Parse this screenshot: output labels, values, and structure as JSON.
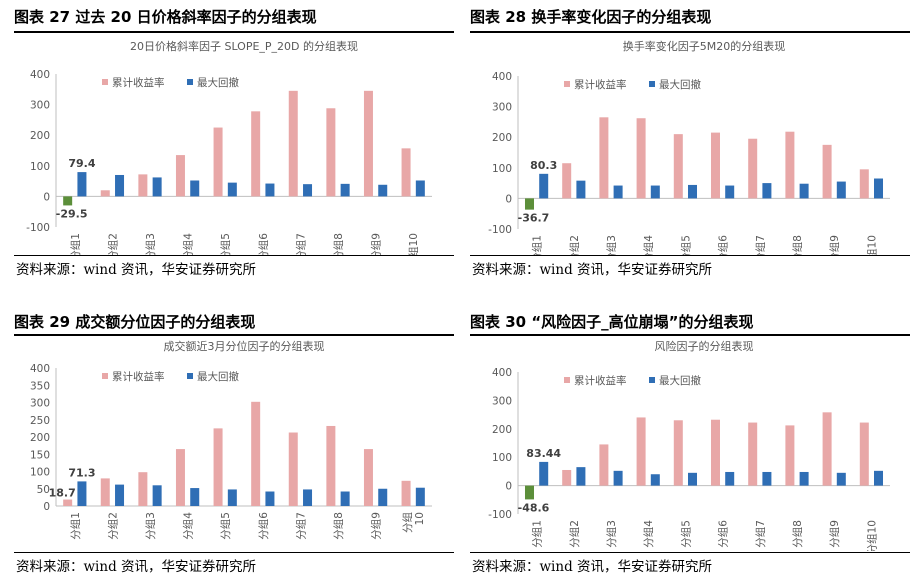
{
  "colors": {
    "series1": "#E8A7A7",
    "series2": "#2F6EB5",
    "negative": "#5C8F3A",
    "axis": "#BFBFBF",
    "text": "#595959"
  },
  "panels": [
    {
      "figure_title": "图表 27  过去 20 日价格斜率因子的分组表现",
      "source": "资料来源：wind 资讯，华安证券研究所",
      "chart_data": {
        "type": "bar",
        "title": "20日价格斜率因子 SLOPE_P_20D 的分组表现",
        "categories": [
          "分组1",
          "分组2",
          "分组3",
          "分组4",
          "分组5",
          "分组6",
          "分组7",
          "分组8",
          "分组9",
          "分组10"
        ],
        "series": [
          {
            "name": "累计收益率",
            "values": [
              -29.5,
              20,
              72,
              135,
              225,
              278,
              345,
              288,
              345,
              157
            ]
          },
          {
            "name": "最大回撤",
            "values": [
              79.4,
              70,
              62,
              52,
              45,
              42,
              40,
              41,
              38,
              52
            ]
          }
        ],
        "data_labels": [
          {
            "series": 0,
            "index": 0,
            "text": "-29.5"
          },
          {
            "series": 1,
            "index": 0,
            "text": "79.4"
          }
        ],
        "yticks": [
          "400",
          "300",
          "200",
          "100",
          "0",
          "-100"
        ],
        "ylim": [
          -100,
          400
        ],
        "legend": "top-left",
        "grid": false
      }
    },
    {
      "figure_title": "图表 28 换手率变化因子的分组表现",
      "source": "资料来源：wind 资讯，华安证券研究所",
      "chart_data": {
        "type": "bar",
        "title": "换手率变化因子5M20的分组表现",
        "categories": [
          "分组1",
          "分组2",
          "分组3",
          "分组4",
          "分组5",
          "分组6",
          "分组7",
          "分组8",
          "分组9",
          "分组10"
        ],
        "series": [
          {
            "name": "累计收益率",
            "values": [
              -36.7,
              115,
              265,
              262,
              210,
              215,
              195,
              218,
              175,
              95
            ]
          },
          {
            "name": "最大回撤",
            "values": [
              80.3,
              58,
              42,
              42,
              44,
              42,
              50,
              48,
              55,
              65
            ]
          }
        ],
        "data_labels": [
          {
            "series": 0,
            "index": 0,
            "text": "-36.7"
          },
          {
            "series": 1,
            "index": 0,
            "text": "80.3"
          }
        ],
        "yticks": [
          "400",
          "300",
          "200",
          "100",
          "0",
          "-100"
        ],
        "ylim": [
          -100,
          400
        ],
        "legend": "top-left",
        "grid": false
      }
    },
    {
      "figure_title": "图表 29 成交额分位因子的分组表现",
      "source": "资料来源：wind 资讯，华安证券研究所",
      "chart_data": {
        "type": "bar",
        "title": "成交额近3月分位因子的分组表现",
        "categories": [
          "分组1",
          "分组2",
          "分组3",
          "分组4",
          "分组5",
          "分组6",
          "分组7",
          "分组8",
          "分组9",
          "分组\n10"
        ],
        "series": [
          {
            "name": "累计收益率",
            "values": [
              18.7,
              80,
              98,
              165,
              225,
              302,
              213,
              232,
              165,
              73
            ]
          },
          {
            "name": "最大回撤",
            "values": [
              71.3,
              62,
              60,
              52,
              48,
              42,
              48,
              42,
              50,
              53
            ]
          }
        ],
        "data_labels": [
          {
            "series": 0,
            "index": 0,
            "text": "18.7"
          },
          {
            "series": 1,
            "index": 0,
            "text": "71.3"
          }
        ],
        "yticks": [
          "400",
          "350",
          "300",
          "250",
          "200",
          "150",
          "100",
          "50",
          "0"
        ],
        "ylim": [
          0,
          400
        ],
        "legend": "top-left",
        "grid": false
      }
    },
    {
      "figure_title": "图表 30  “风险因子_高位崩塌”的分组表现",
      "source": "资料来源：wind 资讯，华安证券研究所",
      "chart_data": {
        "type": "bar",
        "title": "风险因子的分组表现",
        "categories": [
          "分组1",
          "分组2",
          "分组3",
          "分组4",
          "分组5",
          "分组6",
          "分组7",
          "分组8",
          "分组9",
          "分组10"
        ],
        "series": [
          {
            "name": "累计收益率",
            "values": [
              -48.6,
              55,
              145,
              240,
              230,
              232,
              222,
              212,
              258,
              222
            ]
          },
          {
            "name": "最大回撤",
            "values": [
              83.44,
              65,
              52,
              40,
              45,
              48,
              48,
              48,
              45,
              52
            ]
          }
        ],
        "data_labels": [
          {
            "series": 0,
            "index": 0,
            "text": "-48.6"
          },
          {
            "series": 1,
            "index": 0,
            "text": "83.44"
          }
        ],
        "yticks": [
          "400",
          "300",
          "200",
          "100",
          "0",
          "-100"
        ],
        "ylim": [
          -100,
          400
        ],
        "legend": "top-left",
        "grid": false
      }
    }
  ]
}
